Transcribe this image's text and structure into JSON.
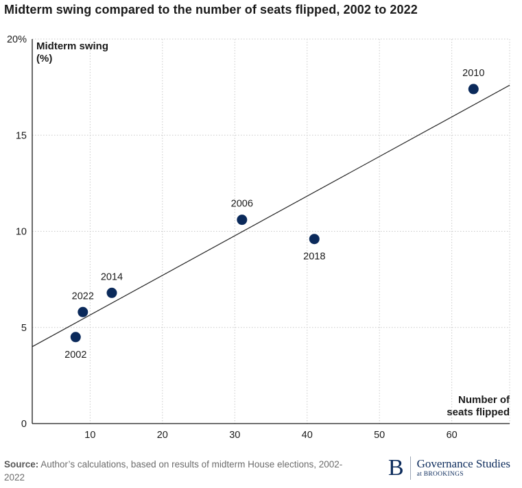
{
  "chart_data": {
    "type": "scatter",
    "title": "Midterm swing compared to the number of seats flipped, 2002 to 2022",
    "xlabel": [
      "Number of",
      "seats flipped"
    ],
    "ylabel": [
      "Midterm swing",
      "(%)"
    ],
    "xlim": [
      2,
      68
    ],
    "ylim": [
      0,
      20
    ],
    "xticks": [
      10,
      20,
      30,
      40,
      50,
      60
    ],
    "yticks": [
      0,
      5,
      10,
      15,
      20
    ],
    "ytick_labels": [
      "0",
      "5",
      "10",
      "15",
      "20%"
    ],
    "grid": true,
    "points": [
      {
        "year": "2002",
        "x": 8,
        "y": 4.5,
        "label_pos": "below"
      },
      {
        "year": "2022",
        "x": 9,
        "y": 5.8,
        "label_pos": "above"
      },
      {
        "year": "2014",
        "x": 13,
        "y": 6.8,
        "label_pos": "above"
      },
      {
        "year": "2006",
        "x": 31,
        "y": 10.6,
        "label_pos": "above"
      },
      {
        "year": "2018",
        "x": 41,
        "y": 9.6,
        "label_pos": "below"
      },
      {
        "year": "2010",
        "x": 63,
        "y": 17.4,
        "label_pos": "above"
      }
    ],
    "trendline": {
      "x": [
        2,
        68
      ],
      "y": [
        4.0,
        17.6
      ]
    },
    "colors": {
      "point": "#0b2a5b",
      "line": "#222222",
      "grid": "#c8c8c8",
      "axis": "#1a1a1a"
    }
  },
  "footer": {
    "source_label": "Source:",
    "source_text": "Author’s calculations, based on results of midterm House elections, 2002-2022"
  },
  "brand": {
    "mark": "B",
    "name": "Governance Studies",
    "sub": "at BROOKINGS"
  }
}
